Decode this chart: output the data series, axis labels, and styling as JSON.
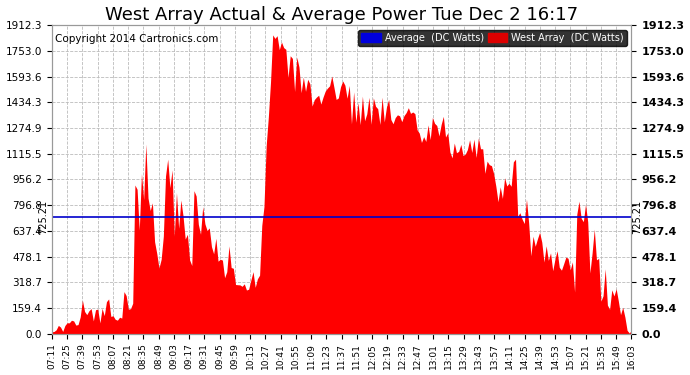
{
  "title": "West Array Actual & Average Power Tue Dec 2 16:17",
  "copyright": "Copyright 2014 Cartronics.com",
  "legend_labels": [
    "Average  (DC Watts)",
    "West Array  (DC Watts)"
  ],
  "legend_colors": [
    "#0000dd",
    "#dd0000"
  ],
  "average_value": 725.21,
  "average_label": "725.21",
  "y_tick_labels": [
    "0.0",
    "159.4",
    "318.7",
    "478.1",
    "637.4",
    "796.8",
    "956.2",
    "1115.5",
    "1274.9",
    "1434.3",
    "1593.6",
    "1753.0",
    "1912.3"
  ],
  "y_tick_values": [
    0.0,
    159.4,
    318.7,
    478.1,
    637.4,
    796.8,
    956.2,
    1115.5,
    1274.9,
    1434.3,
    1593.6,
    1753.0,
    1912.3
  ],
  "ymax": 1912.3,
  "x_labels": [
    "07:11",
    "07:25",
    "07:39",
    "07:53",
    "08:07",
    "08:21",
    "08:35",
    "08:49",
    "09:03",
    "09:17",
    "09:31",
    "09:45",
    "09:59",
    "10:13",
    "10:27",
    "10:41",
    "10:55",
    "11:09",
    "11:23",
    "11:37",
    "11:51",
    "12:05",
    "12:19",
    "12:33",
    "12:47",
    "13:01",
    "13:15",
    "13:29",
    "13:43",
    "13:57",
    "14:11",
    "14:25",
    "14:39",
    "14:53",
    "15:07",
    "15:21",
    "15:35",
    "15:49",
    "16:03"
  ],
  "bar_color": "#ff0000",
  "avg_line_color": "#0000cc",
  "background_color": "#ffffff",
  "grid_color": "#bbbbbb",
  "title_fontsize": 13,
  "copyright_fontsize": 7.5
}
